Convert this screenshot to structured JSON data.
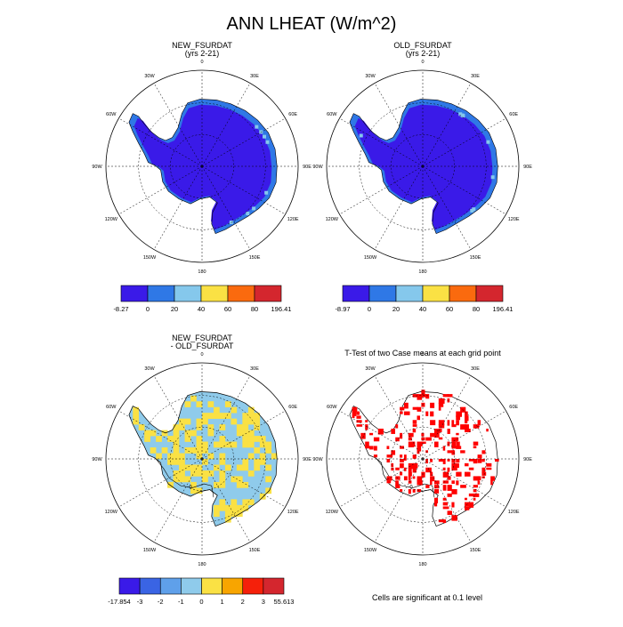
{
  "page": {
    "title": "ANN LHEAT (W/m^2)",
    "footnote": "Cells are significant at 0.1 level"
  },
  "palettes": {
    "abs": [
      "#3a1ae8",
      "#2f78e6",
      "#85c8ec",
      "#fae144",
      "#fa6a0e",
      "#d4262e"
    ],
    "diff": [
      "#3a1ae8",
      "#3a64e4",
      "#5fa0ea",
      "#8fcbeb",
      "#fae144",
      "#f8a500",
      "#f5200a",
      "#d4262e"
    ],
    "coast": "#000000",
    "ttest": "#ff0000"
  },
  "panels": [
    {
      "id": "new",
      "title": [
        "NEW_FSURDAT",
        "(yrs 2-21)"
      ],
      "kind": "field",
      "colorbar": {
        "palette": "abs",
        "labels": [
          "-8.27",
          "0",
          "20",
          "40",
          "60",
          "80",
          "196.41"
        ]
      }
    },
    {
      "id": "old",
      "title": [
        "OLD_FSURDAT",
        "(yrs 2-21)"
      ],
      "kind": "field",
      "colorbar": {
        "palette": "abs",
        "labels": [
          "-8.97",
          "0",
          "20",
          "40",
          "60",
          "80",
          "196.41"
        ]
      }
    },
    {
      "id": "diff",
      "title": [
        "NEW_FSURDAT",
        "- OLD_FSURDAT"
      ],
      "kind": "diff",
      "colorbar": {
        "palette": "diff",
        "labels": [
          "-17.854",
          "-3",
          "-2",
          "-1",
          "0",
          "1",
          "2",
          "3",
          "55.613"
        ]
      }
    },
    {
      "id": "ttest",
      "title": [
        "T-Test of two Case means at each grid point"
      ],
      "kind": "ttest",
      "colorbar": null
    }
  ],
  "lon_labels": [
    "0",
    "30E",
    "60E",
    "90E",
    "120E",
    "150E",
    "180",
    "150W",
    "120W",
    "90W",
    "60W",
    "30W"
  ],
  "contour_label": "0"
}
